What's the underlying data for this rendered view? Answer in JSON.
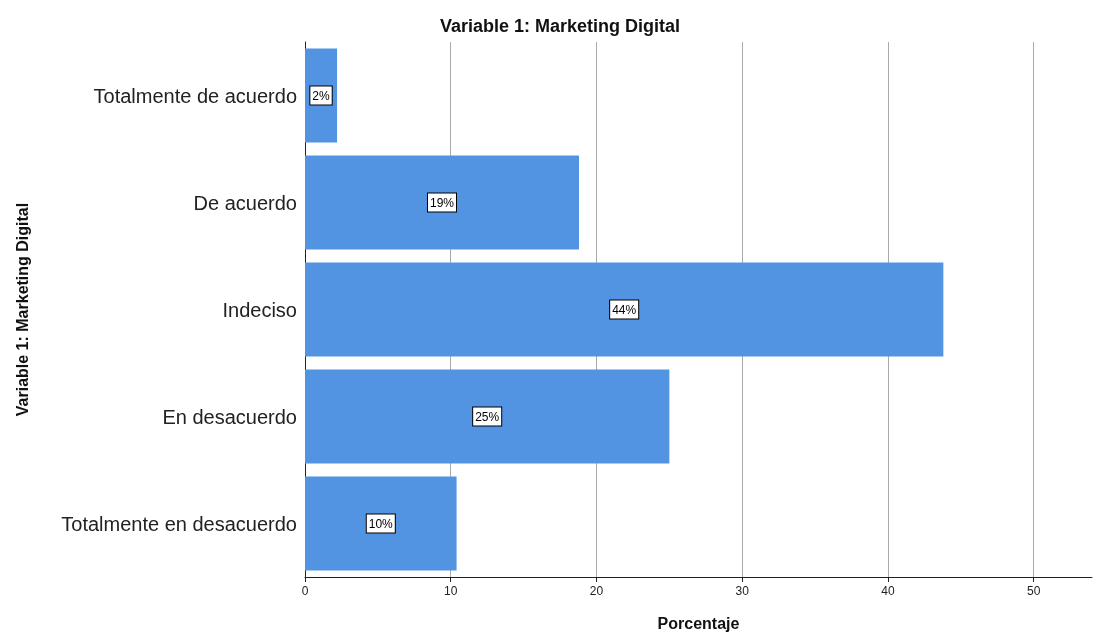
{
  "chart_data": {
    "type": "bar",
    "orientation": "horizontal",
    "title": "Variable 1: Marketing Digital",
    "xlabel": "Porcentaje",
    "ylabel": "Variable 1: Marketing Digital",
    "categories": [
      "Totalmente de acuerdo",
      "De acuerdo",
      "Indeciso",
      "En desacuerdo",
      "Totalmente en desacuerdo"
    ],
    "values": [
      2.2,
      18.8,
      43.8,
      25.0,
      10.4
    ],
    "value_labels": [
      "2%",
      "19%",
      "44%",
      "25%",
      "10%"
    ],
    "color": "#5294e2",
    "xlim": [
      0,
      54
    ],
    "xticks": [
      0,
      10,
      20,
      30,
      40,
      50
    ],
    "grid": "x"
  }
}
